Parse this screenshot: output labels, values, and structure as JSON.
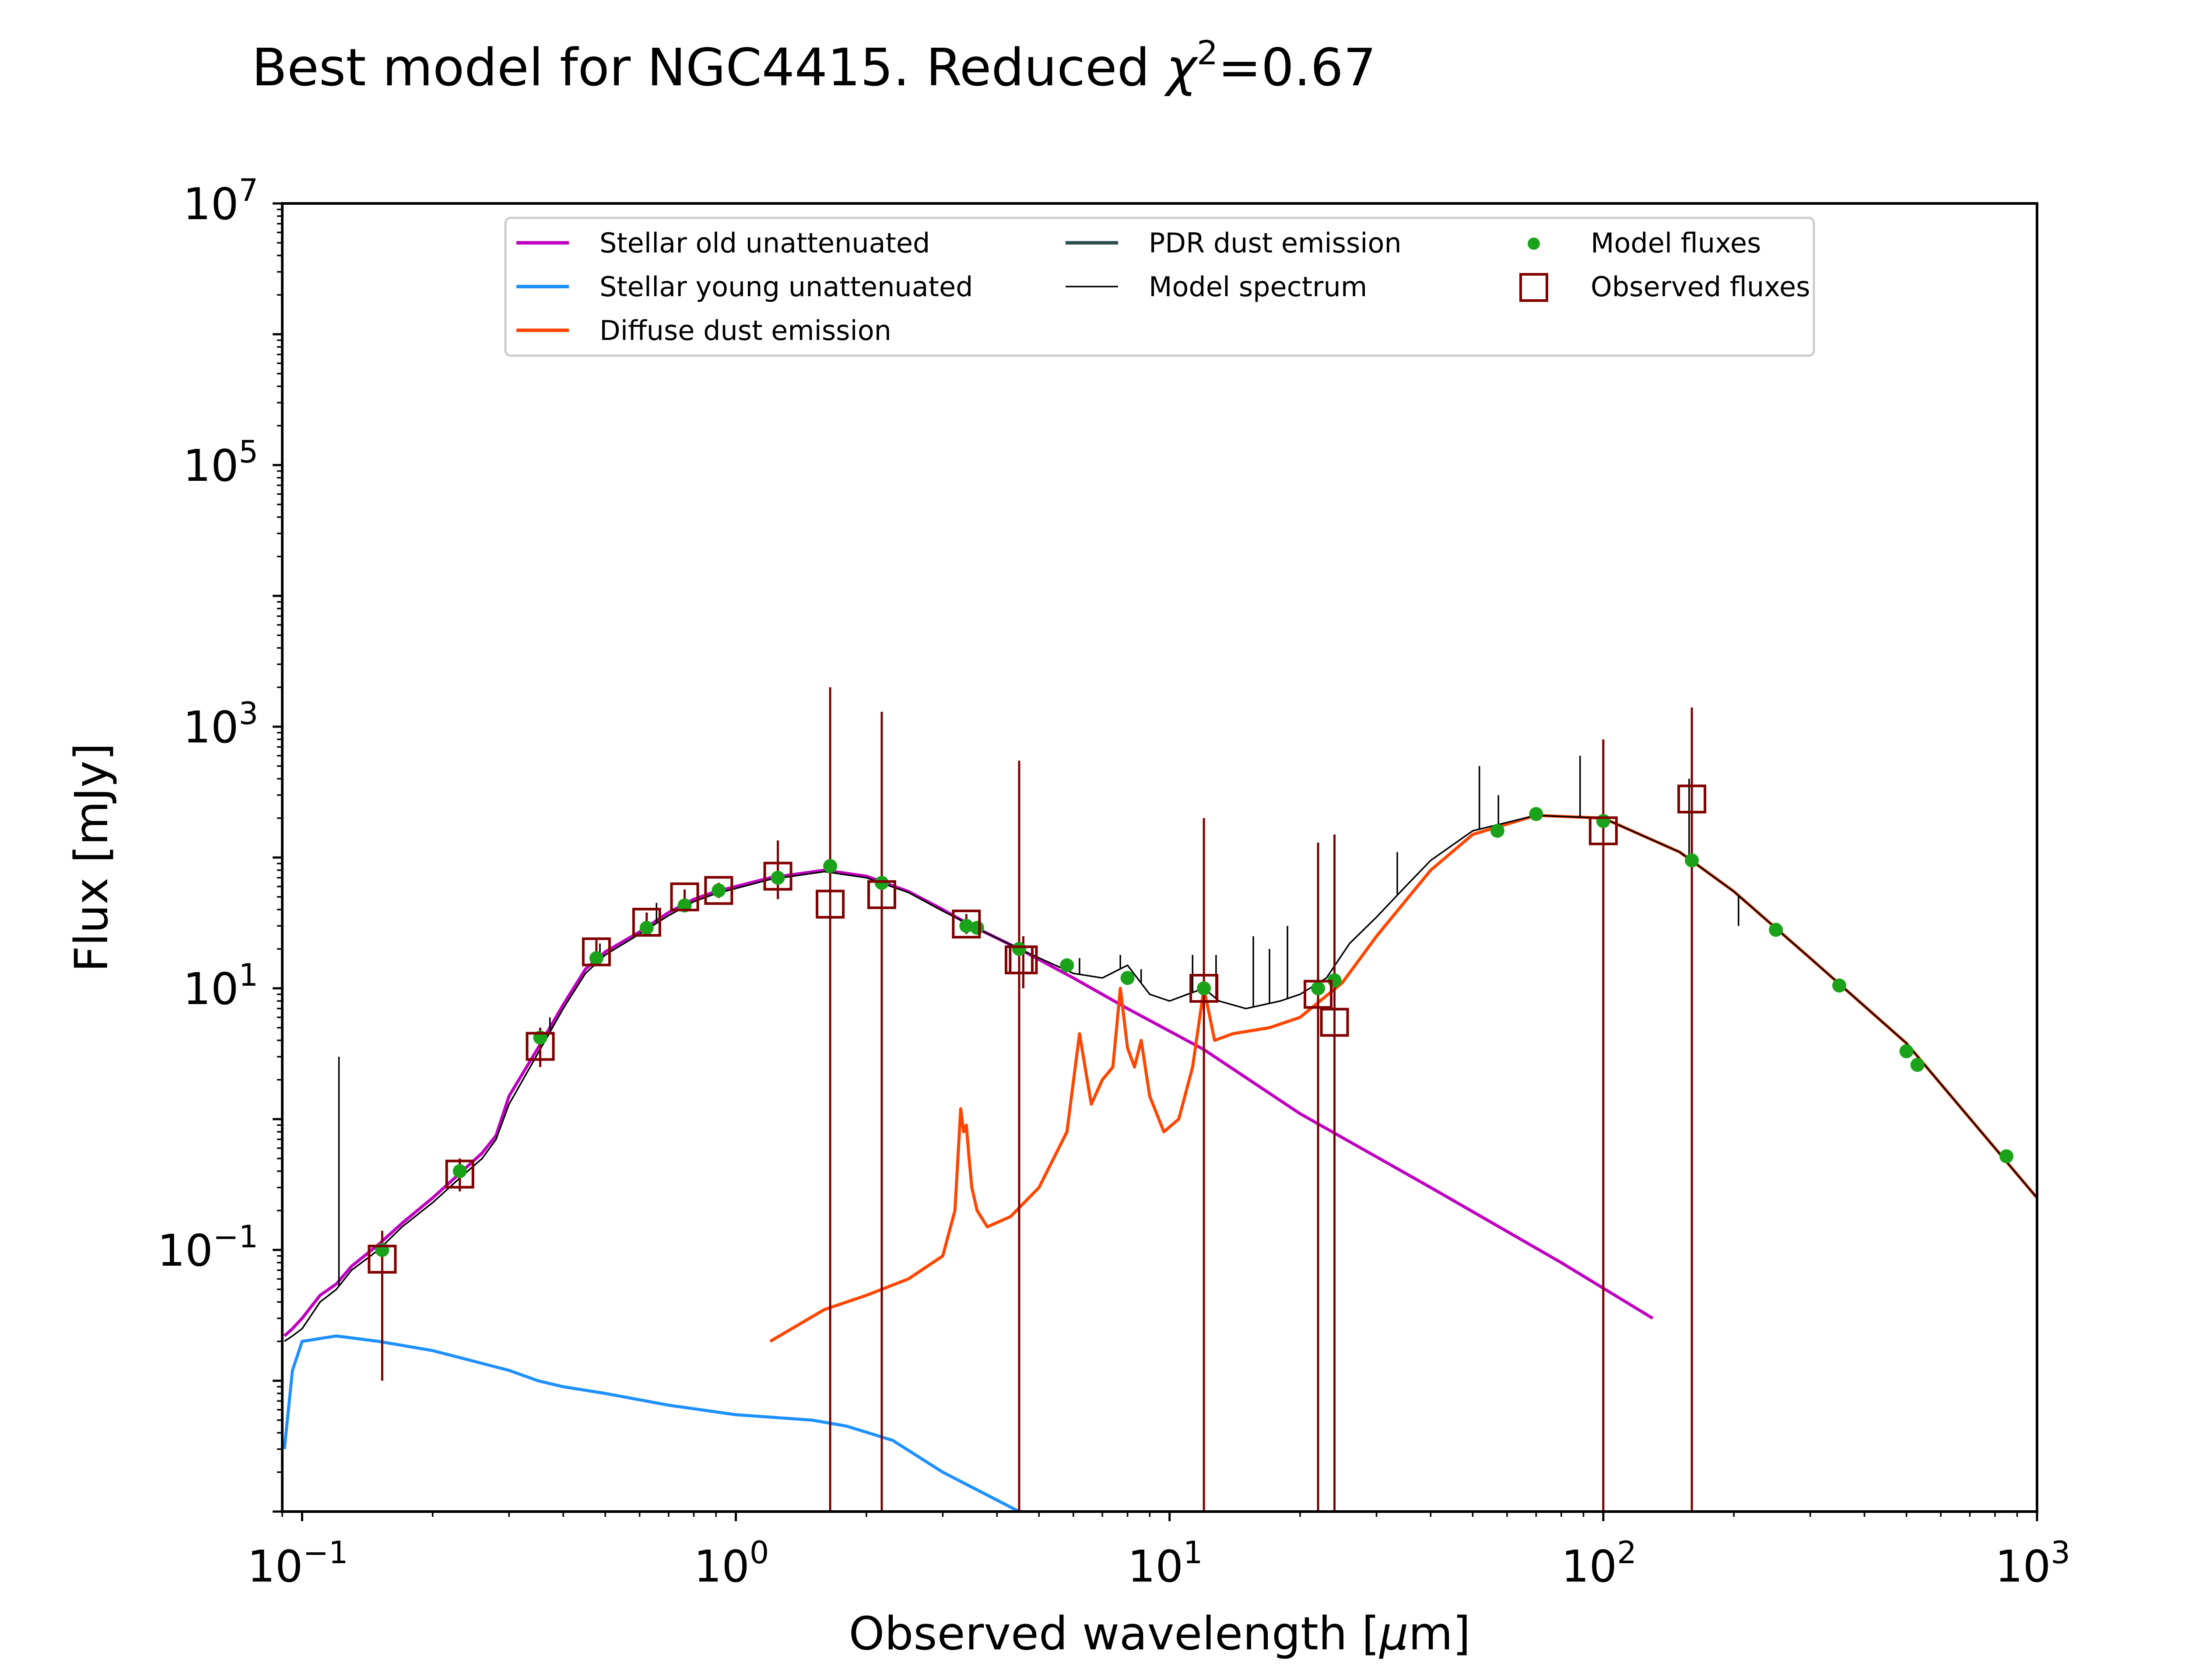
{
  "title_main": "Best model for NGC4415. Reduced ",
  "title_chi": "χ",
  "title_exp": "2",
  "title_val": "=0.67",
  "chart_data": {
    "type": "line",
    "title": "Best model for NGC4415. Reduced χ²=0.67",
    "xlabel_main": "Observed wavelength [",
    "xlabel_mu": "μ",
    "xlabel_end": "m]",
    "ylabel": "Flux [mJy]",
    "xscale": "log",
    "yscale": "log",
    "xlim": [
      0.09,
      1000
    ],
    "ylim": [
      0.001,
      10000000
    ],
    "grid": false,
    "legend_position": "top-center",
    "xticks": [
      {
        "value": 0.1,
        "base": "10",
        "exp": "−1"
      },
      {
        "value": 1,
        "base": "10",
        "exp": "0"
      },
      {
        "value": 10,
        "base": "10",
        "exp": "1"
      },
      {
        "value": 100,
        "base": "10",
        "exp": "2"
      },
      {
        "value": 1000,
        "base": "10",
        "exp": "3"
      }
    ],
    "yticks": [
      {
        "value": 0.1,
        "base": "10",
        "exp": "−1"
      },
      {
        "value": 10,
        "base": "10",
        "exp": "1"
      },
      {
        "value": 1000,
        "base": "10",
        "exp": "3"
      },
      {
        "value": 100000,
        "base": "10",
        "exp": "5"
      },
      {
        "value": 10000000,
        "base": "10",
        "exp": "7"
      }
    ],
    "legend": [
      {
        "label": "Stellar old unattenuated",
        "kind": "line",
        "color": "#bf00bf"
      },
      {
        "label": "Stellar young unattenuated",
        "kind": "line",
        "color": "#1e90ff"
      },
      {
        "label": "Diffuse dust emission",
        "kind": "line",
        "color": "#ff4500"
      },
      {
        "label": "PDR dust emission",
        "kind": "line",
        "color": "#2f4f4f"
      },
      {
        "label": "Model spectrum",
        "kind": "thinline",
        "color": "#000000"
      },
      {
        "label": "Model fluxes",
        "kind": "dot",
        "color": "#1aa31a"
      },
      {
        "label": "Observed fluxes",
        "kind": "square",
        "color": "#800000"
      }
    ],
    "series": [
      {
        "name": "Stellar old unattenuated",
        "color": "#bf00bf",
        "width": 7,
        "x": [
          0.091,
          0.095,
          0.1,
          0.11,
          0.12,
          0.13,
          0.15,
          0.17,
          0.2,
          0.23,
          0.26,
          0.28,
          0.3,
          0.35,
          0.4,
          0.45,
          0.5,
          0.6,
          0.7,
          0.8,
          0.9,
          1.0,
          1.2,
          1.6,
          2.0,
          2.5,
          3.0,
          3.5,
          4.5,
          6,
          8,
          12,
          20,
          40,
          80,
          130
        ],
        "y": [
          0.022,
          0.025,
          0.03,
          0.045,
          0.055,
          0.075,
          0.11,
          0.16,
          0.25,
          0.38,
          0.55,
          0.75,
          1.5,
          3.5,
          7.5,
          14,
          19,
          27,
          38,
          48,
          55,
          60,
          70,
          80,
          72,
          55,
          40,
          30,
          20,
          12,
          7,
          3.4,
          1.1,
          0.3,
          0.08,
          0.03
        ]
      },
      {
        "name": "Stellar young unattenuated",
        "color": "#1e90ff",
        "width": 7,
        "x": [
          0.091,
          0.095,
          0.1,
          0.12,
          0.15,
          0.2,
          0.3,
          0.35,
          0.4,
          0.5,
          0.7,
          1.0,
          1.5,
          1.8,
          2.3,
          3.0,
          4.5
        ],
        "y": [
          0.003,
          0.012,
          0.02,
          0.022,
          0.02,
          0.017,
          0.012,
          0.01,
          0.009,
          0.008,
          0.0065,
          0.0055,
          0.005,
          0.0045,
          0.0035,
          0.002,
          0.001
        ]
      },
      {
        "name": "Diffuse dust emission",
        "color": "#ff4500",
        "width": 7,
        "x": [
          1.2,
          1.6,
          2.0,
          2.5,
          3.0,
          3.2,
          3.3,
          3.35,
          3.4,
          3.45,
          3.5,
          3.6,
          3.8,
          4.3,
          5.0,
          5.8,
          6.2,
          6.6,
          7.0,
          7.4,
          7.7,
          8.0,
          8.3,
          8.6,
          9.0,
          9.7,
          10.5,
          11.3,
          12.0,
          12.7,
          14,
          17,
          20,
          25,
          30,
          40,
          50,
          70,
          100,
          150,
          200,
          300,
          500,
          800,
          1000
        ],
        "y": [
          0.02,
          0.035,
          0.045,
          0.06,
          0.09,
          0.2,
          1.2,
          0.8,
          0.9,
          0.5,
          0.3,
          0.2,
          0.15,
          0.18,
          0.3,
          0.8,
          4.5,
          1.3,
          2.0,
          2.5,
          10,
          3.5,
          2.5,
          4.0,
          1.5,
          0.8,
          1.0,
          2.5,
          10,
          4.0,
          4.5,
          5.0,
          6.0,
          11,
          25,
          80,
          150,
          210,
          200,
          110,
          55,
          17,
          3.8,
          0.6,
          0.25
        ]
      },
      {
        "name": "Model spectrum",
        "color": "#000000",
        "width": 3.5,
        "x": [
          0.091,
          0.095,
          0.1,
          0.11,
          0.12,
          0.13,
          0.15,
          0.17,
          0.2,
          0.23,
          0.26,
          0.28,
          0.3,
          0.35,
          0.4,
          0.45,
          0.5,
          0.6,
          0.7,
          0.8,
          0.9,
          1.0,
          1.2,
          1.6,
          2.0,
          2.5,
          3.0,
          3.5,
          4.5,
          6,
          7,
          8,
          9,
          10,
          11,
          12,
          13,
          15,
          18,
          20,
          23,
          26,
          30,
          35,
          40,
          50,
          70,
          100,
          150,
          200,
          300,
          500,
          800,
          1000
        ],
        "y": [
          0.02,
          0.022,
          0.025,
          0.04,
          0.05,
          0.07,
          0.1,
          0.15,
          0.23,
          0.35,
          0.5,
          0.7,
          1.3,
          3.2,
          7,
          13,
          18,
          26,
          36,
          46,
          53,
          58,
          68,
          78,
          70,
          54,
          39,
          30,
          20,
          13,
          12,
          15,
          9,
          8,
          9,
          10,
          8,
          7,
          8,
          9,
          12,
          22,
          35,
          60,
          95,
          160,
          210,
          200,
          110,
          55,
          17,
          3.8,
          0.6,
          0.25
        ]
      }
    ],
    "spikes": [
      {
        "x": 0.1216,
        "y": 3.0
      },
      {
        "x": 0.3727,
        "y": 6.0
      },
      {
        "x": 0.4861,
        "y": 22
      },
      {
        "x": 0.6563,
        "y": 45
      },
      {
        "x": 6.2,
        "y": 17
      },
      {
        "x": 7.7,
        "y": 18
      },
      {
        "x": 8.6,
        "y": 14
      },
      {
        "x": 11.3,
        "y": 18
      },
      {
        "x": 12.8,
        "y": 18
      },
      {
        "x": 15.6,
        "y": 25
      },
      {
        "x": 17.0,
        "y": 20
      },
      {
        "x": 18.7,
        "y": 30
      },
      {
        "x": 33.5,
        "y": 110
      },
      {
        "x": 51.8,
        "y": 500
      },
      {
        "x": 57.3,
        "y": 300
      },
      {
        "x": 88.4,
        "y": 600
      },
      {
        "x": 121.9,
        "y": 150
      },
      {
        "x": 157.7,
        "y": 400
      },
      {
        "x": 205,
        "y": 30
      }
    ],
    "model_fluxes": {
      "x": [
        0.153,
        0.231,
        0.354,
        0.477,
        0.623,
        0.762,
        0.913,
        1.25,
        1.65,
        2.17,
        3.4,
        3.6,
        4.5,
        5.8,
        8.0,
        12,
        22,
        24,
        57,
        70,
        100,
        160,
        250,
        350,
        500,
        530,
        850
      ],
      "y": [
        0.1,
        0.4,
        4.2,
        17,
        29,
        43,
        56,
        70,
        86,
        64,
        30,
        29,
        20,
        15,
        12,
        10,
        10,
        11.5,
        160,
        215,
        190,
        95,
        28,
        10.5,
        3.3,
        2.6,
        0.52
      ]
    },
    "observed_fluxes": {
      "x": [
        0.153,
        0.231,
        0.354,
        0.477,
        0.623,
        0.762,
        0.913,
        1.25,
        1.65,
        2.17,
        3.4,
        4.5,
        4.6,
        12,
        22,
        24,
        100,
        160
      ],
      "y": [
        0.085,
        0.38,
        3.6,
        19,
        32,
        50,
        56,
        72,
        44,
        52,
        31,
        16.5,
        16.5,
        10,
        9,
        5.5,
        160,
        280
      ],
      "ylo": [
        0.01,
        0.28,
        2.5,
        15,
        27,
        44,
        49,
        48,
        0.001,
        0.001,
        26,
        0.001,
        10,
        0.001,
        0.001,
        0.001,
        0.001,
        0.001
      ],
      "yhi": [
        0.14,
        0.5,
        5.0,
        24,
        38,
        57,
        64,
        135,
        2000,
        1300,
        37,
        550,
        25,
        200,
        130,
        150,
        800,
        1400
      ]
    }
  }
}
